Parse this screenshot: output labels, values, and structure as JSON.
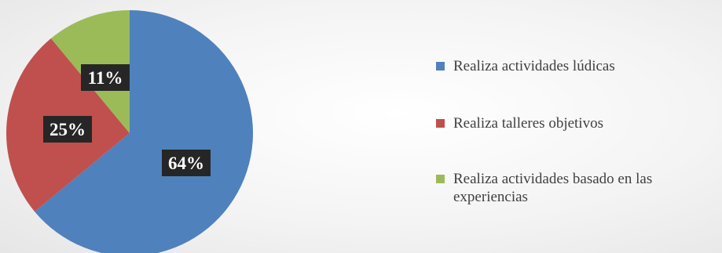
{
  "chart_data": {
    "type": "pie",
    "slices": [
      {
        "label": "Realiza actividades lúdicas",
        "value": 64,
        "display": "64%",
        "color": "#4f81bd"
      },
      {
        "label": "Realiza talleres objetivos",
        "value": 25,
        "display": "25%",
        "color": "#c0504d"
      },
      {
        "label": "Realiza actividades basado en las experiencias",
        "value": 11,
        "display": "11%",
        "color": "#9bbb59"
      }
    ],
    "legend_position": "right",
    "data_label_background": "#262626",
    "data_label_color": "#ffffff"
  }
}
